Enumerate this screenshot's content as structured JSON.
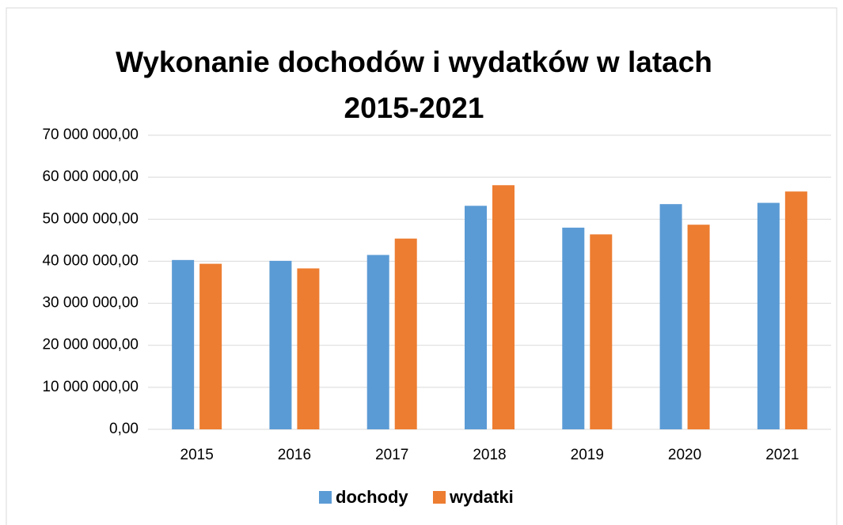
{
  "chart_data": {
    "type": "bar",
    "title": "Wykonanie dochodów i wydatków w latach 2015-2021",
    "categories": [
      "2015",
      "2016",
      "2017",
      "2018",
      "2019",
      "2020",
      "2021"
    ],
    "series": [
      {
        "name": "dochody",
        "color": "#5b9bd5",
        "values": [
          40300000,
          40100000,
          41500000,
          53200000,
          48000000,
          53600000,
          53900000
        ]
      },
      {
        "name": "wydatki",
        "color": "#ed7d31",
        "values": [
          39400000,
          38300000,
          45400000,
          58100000,
          46400000,
          48700000,
          56600000
        ]
      }
    ],
    "ylim": [
      0,
      70000000
    ],
    "yticks": [
      {
        "value": 0,
        "label": "0,00"
      },
      {
        "value": 10000000,
        "label": "10 000 000,00"
      },
      {
        "value": 20000000,
        "label": "20 000 000,00"
      },
      {
        "value": 30000000,
        "label": "30 000 000,00"
      },
      {
        "value": 40000000,
        "label": "40 000 000,00"
      },
      {
        "value": 50000000,
        "label": "50 000 000,00"
      },
      {
        "value": 60000000,
        "label": "60 000 000,00"
      },
      {
        "value": 70000000,
        "label": "70 000 000,00"
      }
    ],
    "grid": true,
    "legend": "bottom"
  }
}
